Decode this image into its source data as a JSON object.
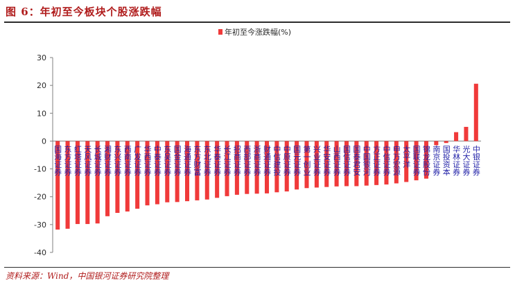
{
  "figure": {
    "title": "图 6：年初至今板块个股涨跌幅",
    "source": "资料来源：Wind，中国银河证券研究院整理"
  },
  "colors": {
    "bar": "#f03a3a",
    "title": "#b01c1c",
    "axis": "#7f7f7f",
    "text": "#2a2a2a",
    "category_text": "#2323a8"
  },
  "chart_data": {
    "type": "bar",
    "categories": [
      "国海证券",
      "东方证券",
      "红塔证券",
      "天风证券",
      "长城证券",
      "湘财证券",
      "东兴证券",
      "西南证券",
      "广发证券",
      "华西证券",
      "中泰证券",
      "东吴证券",
      "国金证券",
      "海通证券",
      "东方财富",
      "东北证券",
      "华泰证券",
      "长江证券",
      "招商证券",
      "西部证券",
      "浙商证券",
      "财通证券",
      "中信建投",
      "中原证券",
      "国元证券",
      "第一创业",
      "兴业证券",
      "华安证券",
      "山西证券",
      "国信证券",
      "国泰君安",
      "中国银河",
      "方正证券",
      "中信证券",
      "申万宏源",
      "太平洋",
      "国联证券",
      "锦龙股份",
      "南京证券",
      "国投资本",
      "华林证券",
      "光大证券",
      "中银证券"
    ],
    "series": [
      {
        "name": "年初至今涨跌幅(%)",
        "values": [
          -31.8,
          -31.5,
          -29.8,
          -29.8,
          -29.6,
          -27.0,
          -25.8,
          -25.3,
          -24.3,
          -23.1,
          -22.7,
          -22.0,
          -21.9,
          -21.6,
          -21.3,
          -21.0,
          -20.4,
          -19.8,
          -19.3,
          -19.0,
          -18.9,
          -18.8,
          -18.4,
          -18.1,
          -17.4,
          -16.9,
          -16.7,
          -16.5,
          -16.3,
          -16.2,
          -16.2,
          -16.0,
          -15.8,
          -15.6,
          -15.2,
          -14.7,
          -14.1,
          -13.5,
          -1.5,
          -0.7,
          3.2,
          5.1,
          20.6
        ]
      }
    ],
    "ylim": [
      -40,
      30
    ],
    "yticks": [
      -40,
      -30,
      -20,
      -10,
      0,
      10,
      20,
      30
    ],
    "legend_position": "top-center"
  }
}
